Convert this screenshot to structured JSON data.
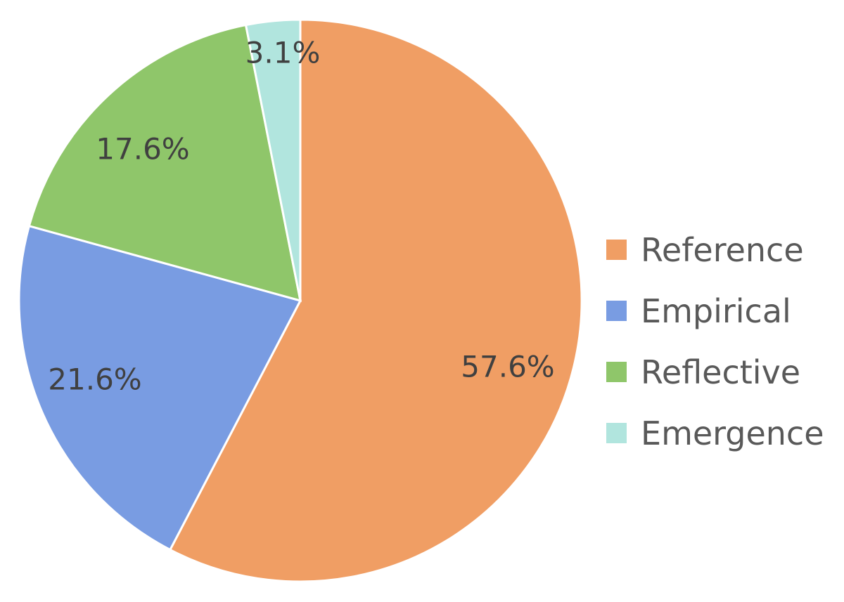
{
  "chart_data": {
    "type": "pie",
    "title": "",
    "start_angle_deg": 0,
    "direction": "clockwise",
    "categories": [
      "Reference",
      "Empirical",
      "Reflective",
      "Emergence"
    ],
    "values": [
      57.6,
      21.6,
      17.6,
      3.1
    ],
    "labels": [
      "57.6%",
      "21.6%",
      "17.6%",
      "3.1%"
    ],
    "colors": [
      "#F09E64",
      "#799CE2",
      "#8FC66A",
      "#B1E5DE"
    ],
    "legend_position": "right"
  },
  "legend": {
    "items": [
      {
        "label": "Reference",
        "color": "#F09E64"
      },
      {
        "label": "Empirical",
        "color": "#799CE2"
      },
      {
        "label": "Reflective",
        "color": "#8FC66A"
      },
      {
        "label": "Emergence",
        "color": "#B1E5DE"
      }
    ]
  }
}
